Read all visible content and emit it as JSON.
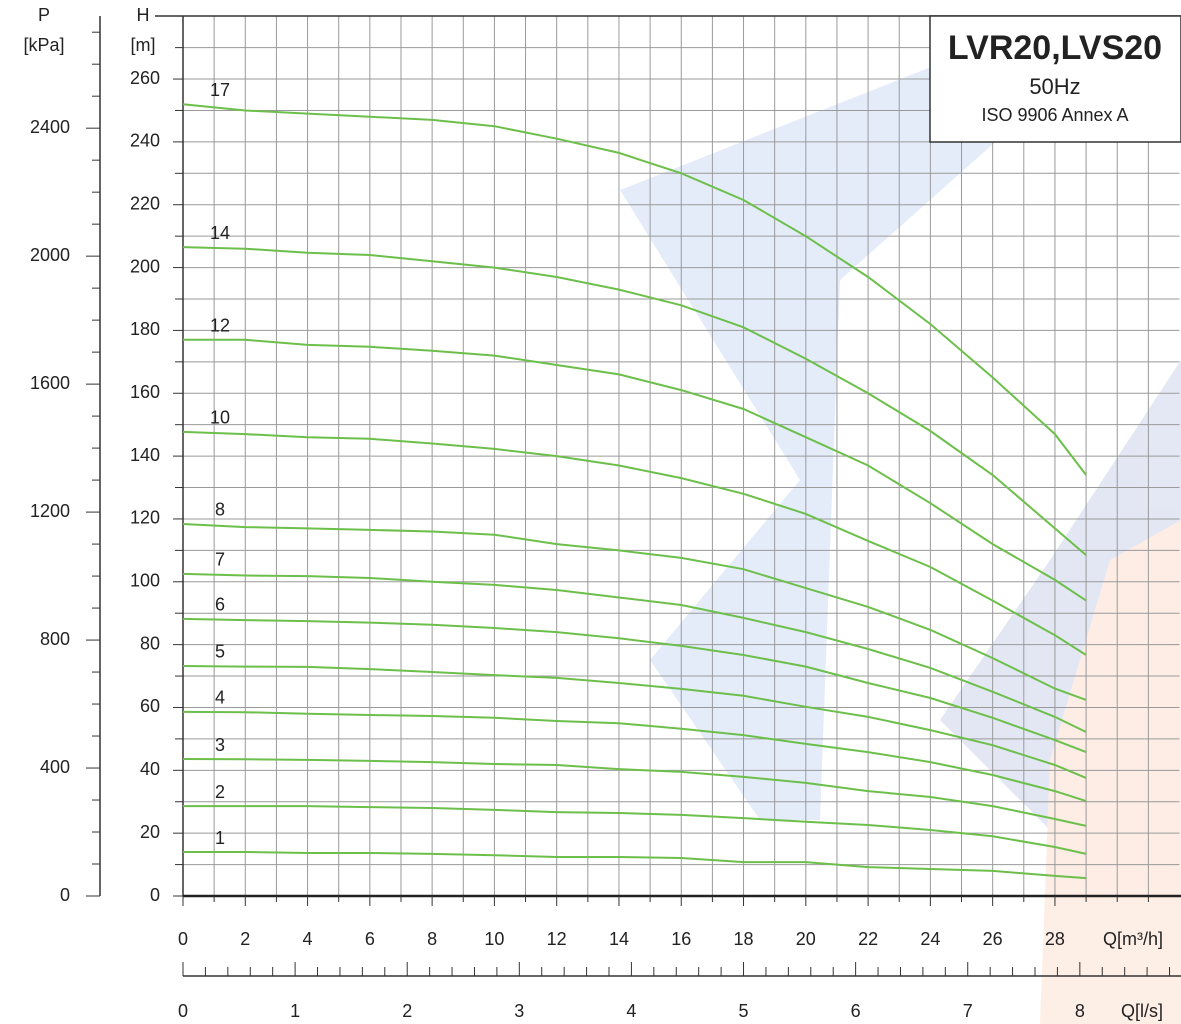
{
  "chart_data": {
    "type": "line",
    "title": "LVR20,LVS20",
    "subtitle": "50Hz",
    "annotation": "ISO 9906 Annex A",
    "y_label": "H",
    "y_unit": "[m]",
    "y2_label": "P",
    "y2_unit": "[kPa]",
    "x_label": "Q[m³/h]",
    "x2_label": "Q[l/s]",
    "x": [
      0,
      2,
      4,
      6,
      8,
      10,
      12,
      14,
      16,
      18,
      20,
      22,
      24,
      26,
      28,
      29
    ],
    "series": [
      {
        "name": "17",
        "color": "#6dbf4b",
        "values": [
          252,
          250,
          249,
          248,
          247,
          245,
          241,
          236.5,
          230,
          221.5,
          210,
          197,
          182,
          165,
          147,
          134
        ]
      },
      {
        "name": "14",
        "color": "#6dbf4b",
        "values": [
          206.5,
          206,
          204.7,
          204,
          202,
          200,
          197,
          193,
          188,
          181,
          171,
          160,
          148,
          134,
          117,
          108.5
        ]
      },
      {
        "name": "12",
        "color": "#6dbf4b",
        "values": [
          177,
          177,
          175.4,
          174.8,
          173.5,
          172,
          169,
          166,
          161,
          155,
          146,
          137,
          125,
          112,
          100.6,
          94
        ]
      },
      {
        "name": "10",
        "color": "#6dbf4b",
        "values": [
          147.7,
          147,
          146,
          145.5,
          144,
          142.3,
          140,
          137,
          133,
          128,
          121.6,
          113,
          104.7,
          94,
          83,
          76.7
        ]
      },
      {
        "name": "8",
        "color": "#6dbf4b",
        "values": [
          118.4,
          117.4,
          117,
          116.5,
          116,
          115,
          112,
          110,
          107.6,
          104,
          98,
          92,
          84.7,
          75.7,
          66,
          62.4
        ]
      },
      {
        "name": "7",
        "color": "#6dbf4b",
        "values": [
          102.5,
          102,
          101.8,
          101.2,
          100,
          99,
          97.4,
          95,
          92.6,
          88.5,
          84,
          78.6,
          72.6,
          65,
          57,
          52.2
        ]
      },
      {
        "name": "6",
        "color": "#6dbf4b",
        "values": [
          88.2,
          87.8,
          87.5,
          87,
          86.3,
          85.3,
          84,
          82,
          79.6,
          76.7,
          73,
          67.8,
          63,
          56.7,
          49.6,
          45.8
        ]
      },
      {
        "name": "5",
        "color": "#6dbf4b",
        "values": [
          73.2,
          73,
          72.9,
          72.2,
          71.3,
          70.3,
          69.4,
          67.8,
          65.9,
          63.7,
          60.2,
          57,
          52.8,
          48,
          41.7,
          37.6
        ]
      },
      {
        "name": "4",
        "color": "#6dbf4b",
        "values": [
          58.6,
          58.5,
          58,
          57.6,
          57.3,
          56.7,
          55.7,
          55,
          53.2,
          51.2,
          48.4,
          45.8,
          42.6,
          38.5,
          33.4,
          30.2
        ]
      },
      {
        "name": "3",
        "color": "#6dbf4b",
        "values": [
          43.6,
          43.5,
          43.3,
          43,
          42.6,
          42,
          41.7,
          40.4,
          39.5,
          37.9,
          36,
          33.4,
          31.5,
          28.6,
          24.5,
          22.3
        ]
      },
      {
        "name": "2",
        "color": "#6dbf4b",
        "values": [
          28.6,
          28.6,
          28.6,
          28.3,
          28,
          27.4,
          26.7,
          26.4,
          25.8,
          24.8,
          23.6,
          22.6,
          21,
          19,
          15.6,
          13.4
        ]
      },
      {
        "name": "1",
        "color": "#6dbf4b",
        "values": [
          14,
          14,
          13.7,
          13.7,
          13.4,
          13,
          12.4,
          12.4,
          12.1,
          10.8,
          10.8,
          9.2,
          8.6,
          8,
          6.4,
          5.7
        ]
      }
    ],
    "xlim": [
      0,
      32
    ],
    "xticks": [
      0,
      2,
      4,
      6,
      8,
      10,
      12,
      14,
      16,
      18,
      20,
      22,
      24,
      26,
      28
    ],
    "xminorticks": [
      1,
      3,
      5,
      7,
      9,
      11,
      13,
      15,
      17,
      19,
      21,
      23,
      25,
      27,
      29,
      30,
      31
    ],
    "ylim": [
      0,
      280
    ],
    "yticks": [
      0,
      20,
      40,
      60,
      80,
      100,
      120,
      140,
      160,
      180,
      200,
      220,
      240,
      260
    ],
    "yminorticks": [
      10,
      30,
      50,
      70,
      90,
      110,
      130,
      150,
      170,
      190,
      210,
      230,
      250,
      270
    ],
    "y2lim": [
      0,
      2750
    ],
    "y2ticks": [
      0,
      400,
      800,
      1200,
      1600,
      2000,
      2400
    ],
    "y2minorticks": [
      100,
      200,
      300,
      500,
      600,
      700,
      900,
      1000,
      1100,
      1300,
      1400,
      1500,
      1700,
      1800,
      1900,
      2100,
      2200,
      2300,
      2500,
      2600,
      2700
    ],
    "x2lim": [
      0,
      8.889
    ],
    "x2ticks": [
      0,
      1,
      2,
      3,
      4,
      5,
      6,
      7,
      8
    ],
    "x2minorticks": [
      0.2,
      0.4,
      0.6,
      0.8,
      1.2,
      1.4,
      1.6,
      1.8,
      2.2,
      2.4,
      2.6,
      2.8,
      3.2,
      3.4,
      3.6,
      3.8,
      4.2,
      4.4,
      4.6,
      4.8,
      5.2,
      5.4,
      5.6,
      5.8,
      6.2,
      6.4,
      6.6,
      6.8,
      7.2,
      7.4,
      7.6,
      7.8,
      8.2,
      8.4,
      8.6,
      8.8
    ],
    "grid": true
  }
}
